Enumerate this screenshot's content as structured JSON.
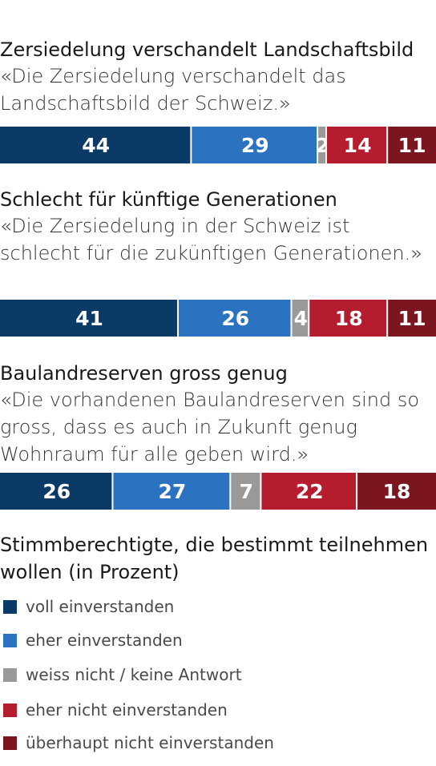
{
  "chart_data": {
    "type": "bar",
    "stacked": true,
    "orientation": "horizontal",
    "categories": [
      "Zersiedelung verschandelt Landschaftsbild",
      "Schlecht für künftige Generationen",
      "Baulandreserven gross genug"
    ],
    "quotes": [
      "«Die Zersiedelung verschandelt das Landschaftsbild der Schweiz.»",
      "«Die Zersiedelung in der Schweiz ist schlecht für die zukünftigen Generationen.»",
      "«Die vorhandenen Baulandreserven sind so gross, dass es auch in Zukunft genug Wohnraum für alle geben wird.»"
    ],
    "series": [
      {
        "name": "voll einverstanden",
        "color": "#0b3a66",
        "values": [
          44,
          41,
          26
        ]
      },
      {
        "name": "eher einverstanden",
        "color": "#2b72c1",
        "values": [
          29,
          26,
          27
        ]
      },
      {
        "name": "weiss nicht / keine Antwort",
        "color": "#999999",
        "values": [
          2,
          4,
          7
        ]
      },
      {
        "name": "eher nicht einverstanden",
        "color": "#b51d2f",
        "values": [
          14,
          18,
          22
        ]
      },
      {
        "name": "überhaupt nicht einverstanden",
        "color": "#7b1620",
        "values": [
          11,
          11,
          18
        ]
      }
    ],
    "legend_title": "Stimmberechtigte, die bestimmt teilnehmen wollen (in Prozent)",
    "legend_position": "bottom",
    "xlim": [
      0,
      100
    ]
  }
}
